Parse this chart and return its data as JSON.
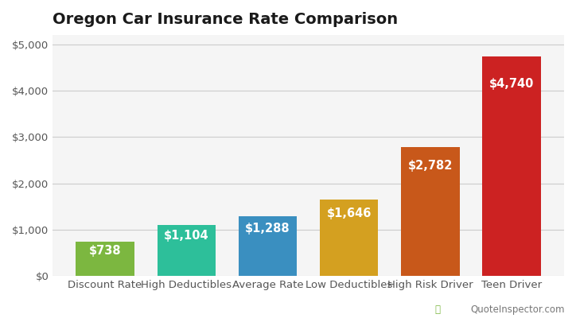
{
  "title": "Oregon Car Insurance Rate Comparison",
  "categories": [
    "Discount Rate",
    "High Deductibles",
    "Average Rate",
    "Low Deductibles",
    "High Risk Driver",
    "Teen Driver"
  ],
  "values": [
    738,
    1104,
    1288,
    1646,
    2782,
    4740
  ],
  "labels": [
    "$738",
    "$1,104",
    "$1,288",
    "$1,646",
    "$2,782",
    "$4,740"
  ],
  "bar_colors": [
    "#7cb740",
    "#2dbf9a",
    "#3a8fc0",
    "#d4a020",
    "#c8581a",
    "#cc2222"
  ],
  "ylim": [
    0,
    5200
  ],
  "yticks": [
    0,
    1000,
    2000,
    3000,
    4000,
    5000
  ],
  "ytick_labels": [
    "$0",
    "$1,000",
    "$2,000",
    "$3,000",
    "$4,000",
    "$5,000"
  ],
  "background_color": "#ffffff",
  "plot_bg_color": "#f5f5f5",
  "grid_color": "#cccccc",
  "label_color": "#ffffff",
  "label_fontsize": 10.5,
  "title_fontsize": 14,
  "tick_fontsize": 9.5,
  "watermark": "QuoteInspector.com",
  "figsize": [
    7.24,
    4.0
  ],
  "dpi": 100
}
